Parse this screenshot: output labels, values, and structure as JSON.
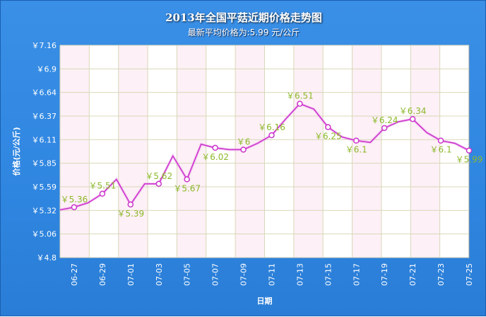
{
  "chart_data": {
    "type": "line",
    "title": "2013年全国平菇近期价格走势图",
    "subtitle": "最新平均价格为:5.99 元/公斤",
    "xlabel": "日期",
    "ylabel": "价格(元/公斤)",
    "ylim": [
      4.8,
      7.16
    ],
    "y_ticks": [
      "￥4.8",
      "￥5.06",
      "￥5.32",
      "￥5.59",
      "￥5.85",
      "￥6.11",
      "￥6.37",
      "￥6.64",
      "￥6.9",
      "￥7.16"
    ],
    "x": [
      "06-26",
      "06-27",
      "06-28",
      "06-29",
      "06-30",
      "07-01",
      "07-02",
      "07-03",
      "07-04",
      "07-05",
      "07-06",
      "07-07",
      "07-08",
      "07-09",
      "07-10",
      "07-11",
      "07-12",
      "07-13",
      "07-14",
      "07-15",
      "07-16",
      "07-17",
      "07-18",
      "07-19",
      "07-20",
      "07-21",
      "07-22",
      "07-23",
      "07-24",
      "07-25"
    ],
    "x_tick_labels": [
      "06-27",
      "06-29",
      "07-01",
      "07-03",
      "07-05",
      "07-07",
      "07-09",
      "07-11",
      "07-13",
      "07-15",
      "07-17",
      "07-19",
      "07-21",
      "07-23",
      "07-25"
    ],
    "values": [
      5.33,
      5.36,
      5.41,
      5.51,
      5.67,
      5.39,
      5.62,
      5.62,
      5.93,
      5.67,
      6.06,
      6.02,
      6.0,
      6.0,
      6.07,
      6.16,
      6.34,
      6.51,
      6.45,
      6.25,
      6.14,
      6.1,
      6.08,
      6.24,
      6.31,
      6.34,
      6.19,
      6.1,
      6.07,
      5.99
    ],
    "data_labels": [
      {
        "x": "06-27",
        "text": "￥5.36",
        "pos": "above"
      },
      {
        "x": "06-29",
        "text": "￥5.51",
        "pos": "above"
      },
      {
        "x": "07-01",
        "text": "￥5.39",
        "pos": "below"
      },
      {
        "x": "07-03",
        "text": "￥5.62",
        "pos": "above"
      },
      {
        "x": "07-05",
        "text": "￥5.67",
        "pos": "below"
      },
      {
        "x": "07-07",
        "text": "￥6.02",
        "pos": "below"
      },
      {
        "x": "07-09",
        "text": "￥6",
        "pos": "above"
      },
      {
        "x": "07-11",
        "text": "￥6.16",
        "pos": "above"
      },
      {
        "x": "07-13",
        "text": "￥6.51",
        "pos": "above"
      },
      {
        "x": "07-15",
        "text": "￥6.25",
        "pos": "below"
      },
      {
        "x": "07-17",
        "text": "￥6.1",
        "pos": "below"
      },
      {
        "x": "07-19",
        "text": "￥6.24",
        "pos": "above"
      },
      {
        "x": "07-21",
        "text": "￥6.34",
        "pos": "above"
      },
      {
        "x": "07-23",
        "text": "￥6.1",
        "pos": "below"
      },
      {
        "x": "07-25",
        "text": "￥5.99",
        "pos": "below"
      }
    ],
    "grid": true,
    "colors": {
      "line": "#cc33cc",
      "label": "#8cb82a",
      "background": "#3a8fe6",
      "band": "#fdf0f6"
    }
  }
}
